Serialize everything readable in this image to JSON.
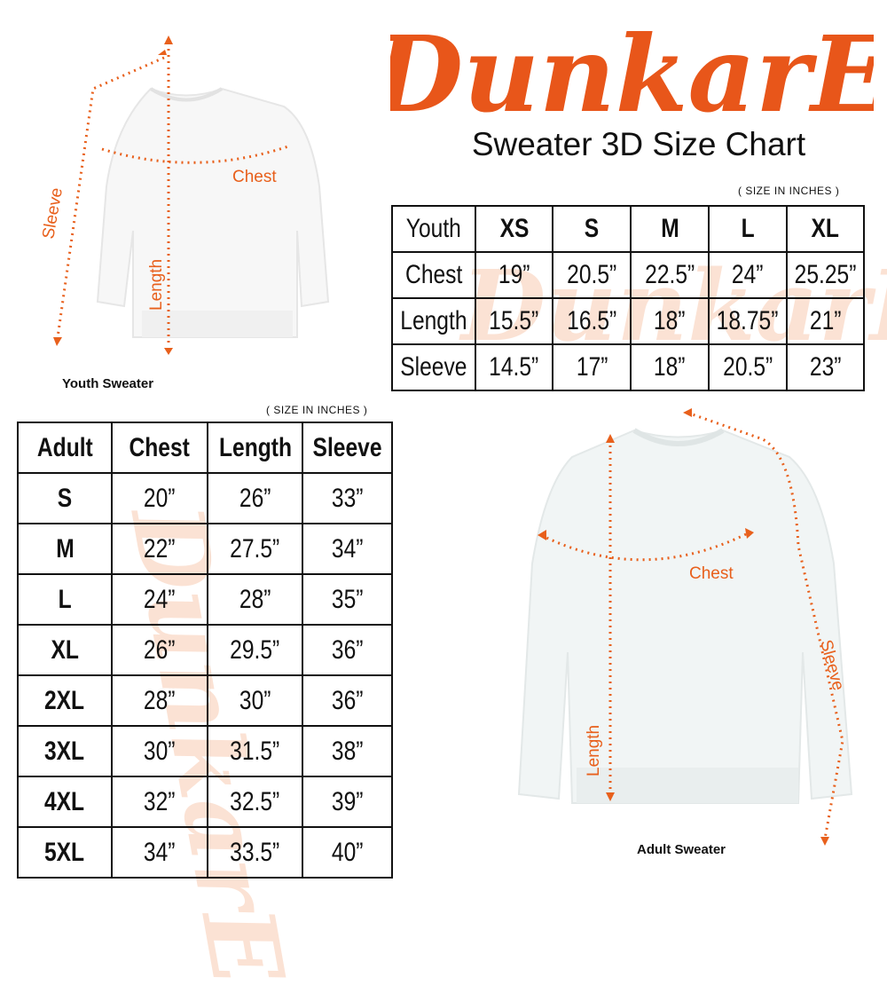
{
  "brand": {
    "logo_text": "DunkarE",
    "color": "#e8561a"
  },
  "title": "Sweater 3D Size Chart",
  "youth": {
    "unit_note": "( SIZE IN INCHES )",
    "caption": "Youth Sweater",
    "diagram_labels": {
      "chest": "Chest",
      "length": "Length",
      "sleeve": "Sleeve"
    },
    "headers": [
      "Youth",
      "XS",
      "S",
      "M",
      "L",
      "XL"
    ],
    "rows": [
      [
        "Chest",
        "19”",
        "20.5”",
        "22.5”",
        "24”",
        "25.25”"
      ],
      [
        "Length",
        "15.5”",
        "16.5”",
        "18”",
        "18.75”",
        "21”"
      ],
      [
        "Sleeve",
        "14.5”",
        "17”",
        "18”",
        "20.5”",
        "23”"
      ]
    ]
  },
  "adult": {
    "unit_note": "( SIZE IN INCHES )",
    "caption": "Adult Sweater",
    "diagram_labels": {
      "chest": "Chest",
      "length": "Length",
      "sleeve": "Sleeve"
    },
    "headers": [
      "Adult",
      "Chest",
      "Length",
      "Sleeve"
    ],
    "rows": [
      [
        "S",
        "20”",
        "26”",
        "33”"
      ],
      [
        "M",
        "22”",
        "27.5”",
        "34”"
      ],
      [
        "L",
        "24”",
        "28”",
        "35”"
      ],
      [
        "XL",
        "26”",
        "29.5”",
        "36”"
      ],
      [
        "2XL",
        "28”",
        "30”",
        "36”"
      ],
      [
        "3XL",
        "30”",
        "31.5”",
        "38”"
      ],
      [
        "4XL",
        "32”",
        "32.5”",
        "39”"
      ],
      [
        "5XL",
        "34”",
        "33.5”",
        "40”"
      ]
    ]
  }
}
